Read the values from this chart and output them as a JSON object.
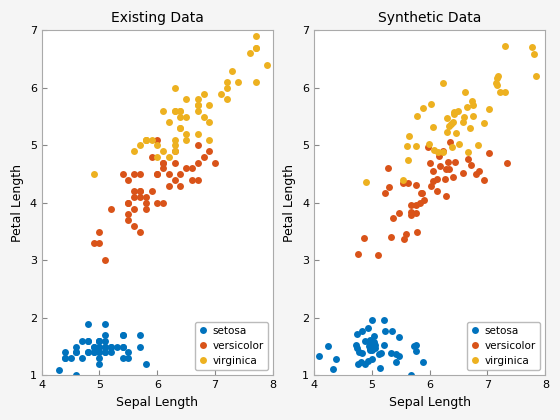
{
  "title1": "Existing Data",
  "title2": "Synthetic Data",
  "xlabel": "Sepal Length",
  "ylabel": "Petal Length",
  "xlim": [
    4,
    8
  ],
  "ylim": [
    1,
    7
  ],
  "colors": {
    "setosa": "#0072BD",
    "versicolor": "#D95319",
    "virginica": "#EDB120"
  },
  "marker": "o",
  "markersize": 5,
  "legend_loc": "lower right",
  "fig_facecolor": "#f5f5f5",
  "axes_facecolor": "#ffffff",
  "noise_scale": 0.18,
  "random_seed": 0
}
